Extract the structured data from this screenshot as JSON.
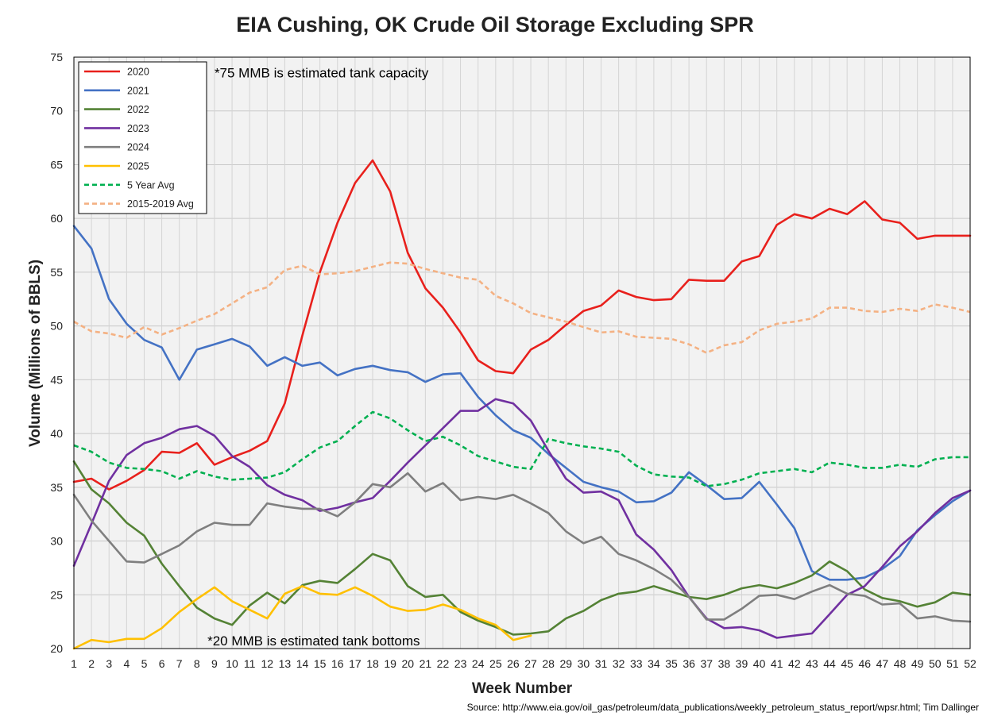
{
  "source": "Source: http://www.eia.gov/oil_gas/petroleum/data_publications/weekly_petroleum_status_report/wpsr.html; Tim Dallinger",
  "chart_data": {
    "type": "line",
    "title": "EIA Cushing, OK Crude Oil Storage Excluding SPR",
    "xlabel": "Week Number",
    "ylabel": "Volume (Millions of BBLS)",
    "xlim": [
      1,
      52
    ],
    "ylim": [
      20,
      75
    ],
    "yticks": [
      20,
      25,
      30,
      35,
      40,
      45,
      50,
      55,
      60,
      65,
      70,
      75
    ],
    "grid": true,
    "legend": "top-left",
    "annotations": [
      {
        "text": "*75 MMB is estimated tank capacity",
        "x": 9,
        "y": 73.1
      },
      {
        "text": "*20 MMB is estimated tank bottoms",
        "x": 8.6,
        "y": 20.3
      }
    ],
    "x": [
      1,
      2,
      3,
      4,
      5,
      6,
      7,
      8,
      9,
      10,
      11,
      12,
      13,
      14,
      15,
      16,
      17,
      18,
      19,
      20,
      21,
      22,
      23,
      24,
      25,
      26,
      27,
      28,
      29,
      30,
      31,
      32,
      33,
      34,
      35,
      36,
      37,
      38,
      39,
      40,
      41,
      42,
      43,
      44,
      45,
      46,
      47,
      48,
      49,
      50,
      51,
      52
    ],
    "series": [
      {
        "name": "2020",
        "color": "#e8201c",
        "dash": false,
        "values": [
          35.5,
          35.8,
          34.8,
          35.6,
          36.6,
          38.3,
          38.2,
          39.1,
          37.1,
          37.8,
          38.4,
          39.3,
          42.8,
          49.1,
          55.0,
          59.6,
          63.3,
          65.4,
          62.5,
          56.8,
          53.5,
          51.7,
          49.4,
          46.8,
          45.8,
          45.6,
          47.8,
          48.7,
          50.1,
          51.4,
          51.9,
          53.3,
          52.7,
          52.4,
          52.5,
          54.3,
          54.2,
          54.2,
          56.0,
          56.5,
          59.4,
          60.4,
          60.0,
          60.9,
          60.4,
          61.6,
          59.9,
          59.6,
          58.1,
          58.4,
          58.4,
          58.4
        ]
      },
      {
        "name": "2021",
        "color": "#4472c4",
        "dash": false,
        "values": [
          59.3,
          57.2,
          52.5,
          50.2,
          48.7,
          48.0,
          45.0,
          47.8,
          48.3,
          48.8,
          48.1,
          46.3,
          47.1,
          46.3,
          46.6,
          45.4,
          46.0,
          46.3,
          45.9,
          45.7,
          44.8,
          45.5,
          45.6,
          43.4,
          41.7,
          40.3,
          39.6,
          38.1,
          36.8,
          35.5,
          35.0,
          34.6,
          33.6,
          33.7,
          34.5,
          36.4,
          35.2,
          33.9,
          34.0,
          35.5,
          33.4,
          31.2,
          27.2,
          26.4,
          26.4,
          26.6,
          27.4,
          28.6,
          31.0,
          32.4,
          33.7,
          34.7
        ]
      },
      {
        "name": "2022",
        "color": "#548235",
        "dash": false,
        "values": [
          37.4,
          34.8,
          33.5,
          31.7,
          30.5,
          27.9,
          25.8,
          23.8,
          22.8,
          22.2,
          24.0,
          25.2,
          24.2,
          25.9,
          26.3,
          26.1,
          27.4,
          28.8,
          28.2,
          25.8,
          24.8,
          25.0,
          23.4,
          22.6,
          22.0,
          21.3,
          21.4,
          21.6,
          22.8,
          23.5,
          24.5,
          25.1,
          25.3,
          25.8,
          25.3,
          24.8,
          24.6,
          25.0,
          25.6,
          25.9,
          25.6,
          26.1,
          26.8,
          28.1,
          27.2,
          25.5,
          24.7,
          24.4,
          23.9,
          24.3,
          25.2,
          25.0
        ]
      },
      {
        "name": "2023",
        "color": "#7030a0",
        "dash": false,
        "values": [
          27.7,
          31.6,
          35.6,
          38.0,
          39.1,
          39.6,
          40.4,
          40.7,
          39.8,
          37.9,
          36.9,
          35.2,
          34.3,
          33.8,
          32.8,
          33.1,
          33.6,
          34.0,
          35.6,
          37.3,
          38.9,
          40.5,
          42.1,
          42.1,
          43.2,
          42.8,
          41.2,
          38.4,
          35.8,
          34.5,
          34.6,
          33.8,
          30.6,
          29.2,
          27.3,
          24.8,
          22.8,
          21.9,
          22.0,
          21.7,
          21.0,
          21.2,
          21.4,
          23.2,
          25.0,
          25.8,
          27.6,
          29.5,
          30.9,
          32.6,
          34.0,
          34.7
        ]
      },
      {
        "name": "2024",
        "color": "#7f7f7f",
        "dash": false,
        "values": [
          34.3,
          31.9,
          30.0,
          28.1,
          28.0,
          28.8,
          29.6,
          30.9,
          31.7,
          31.5,
          31.5,
          33.5,
          33.2,
          33.0,
          33.0,
          32.3,
          33.6,
          35.3,
          35.0,
          36.3,
          34.6,
          35.4,
          33.8,
          34.1,
          33.9,
          34.3,
          33.5,
          32.6,
          30.9,
          29.8,
          30.4,
          28.8,
          28.2,
          27.4,
          26.4,
          24.8,
          22.7,
          22.7,
          23.7,
          24.9,
          25.0,
          24.6,
          25.3,
          25.9,
          25.1,
          24.9,
          24.1,
          24.2,
          22.8,
          23.0,
          22.6,
          22.5
        ]
      },
      {
        "name": "2025",
        "color": "#ffc000",
        "dash": false,
        "values": [
          20.0,
          20.8,
          20.6,
          20.9,
          20.9,
          21.9,
          23.4,
          24.6,
          25.7,
          24.4,
          23.6,
          22.8,
          25.1,
          25.8,
          25.1,
          25.0,
          25.7,
          24.9,
          23.9,
          23.5,
          23.6,
          24.1,
          23.6,
          22.8,
          22.2,
          20.8,
          21.2,
          null,
          null,
          null,
          null,
          null,
          null,
          null,
          null,
          null,
          null,
          null,
          null,
          null,
          null,
          null,
          null,
          null,
          null,
          null,
          null,
          null,
          null,
          null,
          null,
          null
        ]
      },
      {
        "name": "5 Year Avg",
        "color": "#00b050",
        "dash": true,
        "values": [
          38.9,
          38.3,
          37.3,
          36.8,
          36.7,
          36.5,
          35.8,
          36.5,
          36.0,
          35.7,
          35.8,
          35.9,
          36.4,
          37.6,
          38.7,
          39.3,
          40.7,
          42.0,
          41.4,
          40.3,
          39.3,
          39.7,
          38.9,
          37.9,
          37.4,
          36.9,
          36.7,
          39.5,
          39.1,
          38.8,
          38.6,
          38.3,
          37.0,
          36.2,
          36.0,
          35.9,
          35.1,
          35.3,
          35.7,
          36.3,
          36.5,
          36.7,
          36.4,
          37.3,
          37.1,
          36.8,
          36.8,
          37.1,
          36.9,
          37.6,
          37.8,
          37.8
        ]
      },
      {
        "name": "2015-2019 Avg",
        "color": "#f4b183",
        "dash": true,
        "values": [
          50.4,
          49.5,
          49.3,
          48.9,
          49.9,
          49.2,
          49.8,
          50.5,
          51.1,
          52.1,
          53.1,
          53.6,
          55.2,
          55.6,
          54.8,
          54.9,
          55.1,
          55.5,
          55.9,
          55.8,
          55.3,
          54.9,
          54.5,
          54.3,
          52.8,
          52.1,
          51.2,
          50.8,
          50.4,
          49.9,
          49.4,
          49.5,
          49.0,
          48.9,
          48.8,
          48.3,
          47.5,
          48.2,
          48.5,
          49.6,
          50.2,
          50.4,
          50.7,
          51.7,
          51.7,
          51.4,
          51.3,
          51.6,
          51.4,
          52.0,
          51.7,
          51.3
        ]
      }
    ]
  }
}
